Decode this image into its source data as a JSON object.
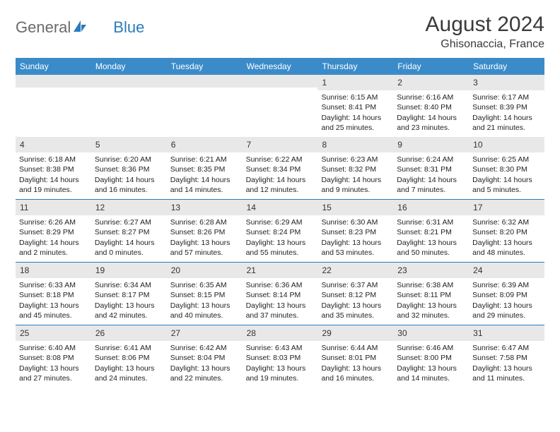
{
  "brand": {
    "part1": "General",
    "part2": "Blue"
  },
  "title": "August 2024",
  "location": "Ghisonaccia, France",
  "colors": {
    "header_bg": "#3b8bc9",
    "header_text": "#ffffff",
    "row_divider": "#2b7bbd",
    "daynum_bg": "#e8e8e8",
    "logo_gray": "#6a6a6a",
    "logo_blue": "#2b7bbd",
    "text": "#222222",
    "background": "#ffffff"
  },
  "typography": {
    "title_fontsize": 30,
    "location_fontsize": 16,
    "dayheader_fontsize": 12,
    "body_fontsize": 10.5,
    "font_family": "Arial"
  },
  "day_headers": [
    "Sunday",
    "Monday",
    "Tuesday",
    "Wednesday",
    "Thursday",
    "Friday",
    "Saturday"
  ],
  "weeks": [
    [
      null,
      null,
      null,
      null,
      {
        "n": "1",
        "sunrise": "Sunrise: 6:15 AM",
        "sunset": "Sunset: 8:41 PM",
        "daylight1": "Daylight: 14 hours",
        "daylight2": "and 25 minutes."
      },
      {
        "n": "2",
        "sunrise": "Sunrise: 6:16 AM",
        "sunset": "Sunset: 8:40 PM",
        "daylight1": "Daylight: 14 hours",
        "daylight2": "and 23 minutes."
      },
      {
        "n": "3",
        "sunrise": "Sunrise: 6:17 AM",
        "sunset": "Sunset: 8:39 PM",
        "daylight1": "Daylight: 14 hours",
        "daylight2": "and 21 minutes."
      }
    ],
    [
      {
        "n": "4",
        "sunrise": "Sunrise: 6:18 AM",
        "sunset": "Sunset: 8:38 PM",
        "daylight1": "Daylight: 14 hours",
        "daylight2": "and 19 minutes."
      },
      {
        "n": "5",
        "sunrise": "Sunrise: 6:20 AM",
        "sunset": "Sunset: 8:36 PM",
        "daylight1": "Daylight: 14 hours",
        "daylight2": "and 16 minutes."
      },
      {
        "n": "6",
        "sunrise": "Sunrise: 6:21 AM",
        "sunset": "Sunset: 8:35 PM",
        "daylight1": "Daylight: 14 hours",
        "daylight2": "and 14 minutes."
      },
      {
        "n": "7",
        "sunrise": "Sunrise: 6:22 AM",
        "sunset": "Sunset: 8:34 PM",
        "daylight1": "Daylight: 14 hours",
        "daylight2": "and 12 minutes."
      },
      {
        "n": "8",
        "sunrise": "Sunrise: 6:23 AM",
        "sunset": "Sunset: 8:32 PM",
        "daylight1": "Daylight: 14 hours",
        "daylight2": "and 9 minutes."
      },
      {
        "n": "9",
        "sunrise": "Sunrise: 6:24 AM",
        "sunset": "Sunset: 8:31 PM",
        "daylight1": "Daylight: 14 hours",
        "daylight2": "and 7 minutes."
      },
      {
        "n": "10",
        "sunrise": "Sunrise: 6:25 AM",
        "sunset": "Sunset: 8:30 PM",
        "daylight1": "Daylight: 14 hours",
        "daylight2": "and 5 minutes."
      }
    ],
    [
      {
        "n": "11",
        "sunrise": "Sunrise: 6:26 AM",
        "sunset": "Sunset: 8:29 PM",
        "daylight1": "Daylight: 14 hours",
        "daylight2": "and 2 minutes."
      },
      {
        "n": "12",
        "sunrise": "Sunrise: 6:27 AM",
        "sunset": "Sunset: 8:27 PM",
        "daylight1": "Daylight: 14 hours",
        "daylight2": "and 0 minutes."
      },
      {
        "n": "13",
        "sunrise": "Sunrise: 6:28 AM",
        "sunset": "Sunset: 8:26 PM",
        "daylight1": "Daylight: 13 hours",
        "daylight2": "and 57 minutes."
      },
      {
        "n": "14",
        "sunrise": "Sunrise: 6:29 AM",
        "sunset": "Sunset: 8:24 PM",
        "daylight1": "Daylight: 13 hours",
        "daylight2": "and 55 minutes."
      },
      {
        "n": "15",
        "sunrise": "Sunrise: 6:30 AM",
        "sunset": "Sunset: 8:23 PM",
        "daylight1": "Daylight: 13 hours",
        "daylight2": "and 53 minutes."
      },
      {
        "n": "16",
        "sunrise": "Sunrise: 6:31 AM",
        "sunset": "Sunset: 8:21 PM",
        "daylight1": "Daylight: 13 hours",
        "daylight2": "and 50 minutes."
      },
      {
        "n": "17",
        "sunrise": "Sunrise: 6:32 AM",
        "sunset": "Sunset: 8:20 PM",
        "daylight1": "Daylight: 13 hours",
        "daylight2": "and 48 minutes."
      }
    ],
    [
      {
        "n": "18",
        "sunrise": "Sunrise: 6:33 AM",
        "sunset": "Sunset: 8:18 PM",
        "daylight1": "Daylight: 13 hours",
        "daylight2": "and 45 minutes."
      },
      {
        "n": "19",
        "sunrise": "Sunrise: 6:34 AM",
        "sunset": "Sunset: 8:17 PM",
        "daylight1": "Daylight: 13 hours",
        "daylight2": "and 42 minutes."
      },
      {
        "n": "20",
        "sunrise": "Sunrise: 6:35 AM",
        "sunset": "Sunset: 8:15 PM",
        "daylight1": "Daylight: 13 hours",
        "daylight2": "and 40 minutes."
      },
      {
        "n": "21",
        "sunrise": "Sunrise: 6:36 AM",
        "sunset": "Sunset: 8:14 PM",
        "daylight1": "Daylight: 13 hours",
        "daylight2": "and 37 minutes."
      },
      {
        "n": "22",
        "sunrise": "Sunrise: 6:37 AM",
        "sunset": "Sunset: 8:12 PM",
        "daylight1": "Daylight: 13 hours",
        "daylight2": "and 35 minutes."
      },
      {
        "n": "23",
        "sunrise": "Sunrise: 6:38 AM",
        "sunset": "Sunset: 8:11 PM",
        "daylight1": "Daylight: 13 hours",
        "daylight2": "and 32 minutes."
      },
      {
        "n": "24",
        "sunrise": "Sunrise: 6:39 AM",
        "sunset": "Sunset: 8:09 PM",
        "daylight1": "Daylight: 13 hours",
        "daylight2": "and 29 minutes."
      }
    ],
    [
      {
        "n": "25",
        "sunrise": "Sunrise: 6:40 AM",
        "sunset": "Sunset: 8:08 PM",
        "daylight1": "Daylight: 13 hours",
        "daylight2": "and 27 minutes."
      },
      {
        "n": "26",
        "sunrise": "Sunrise: 6:41 AM",
        "sunset": "Sunset: 8:06 PM",
        "daylight1": "Daylight: 13 hours",
        "daylight2": "and 24 minutes."
      },
      {
        "n": "27",
        "sunrise": "Sunrise: 6:42 AM",
        "sunset": "Sunset: 8:04 PM",
        "daylight1": "Daylight: 13 hours",
        "daylight2": "and 22 minutes."
      },
      {
        "n": "28",
        "sunrise": "Sunrise: 6:43 AM",
        "sunset": "Sunset: 8:03 PM",
        "daylight1": "Daylight: 13 hours",
        "daylight2": "and 19 minutes."
      },
      {
        "n": "29",
        "sunrise": "Sunrise: 6:44 AM",
        "sunset": "Sunset: 8:01 PM",
        "daylight1": "Daylight: 13 hours",
        "daylight2": "and 16 minutes."
      },
      {
        "n": "30",
        "sunrise": "Sunrise: 6:46 AM",
        "sunset": "Sunset: 8:00 PM",
        "daylight1": "Daylight: 13 hours",
        "daylight2": "and 14 minutes."
      },
      {
        "n": "31",
        "sunrise": "Sunrise: 6:47 AM",
        "sunset": "Sunset: 7:58 PM",
        "daylight1": "Daylight: 13 hours",
        "daylight2": "and 11 minutes."
      }
    ]
  ]
}
